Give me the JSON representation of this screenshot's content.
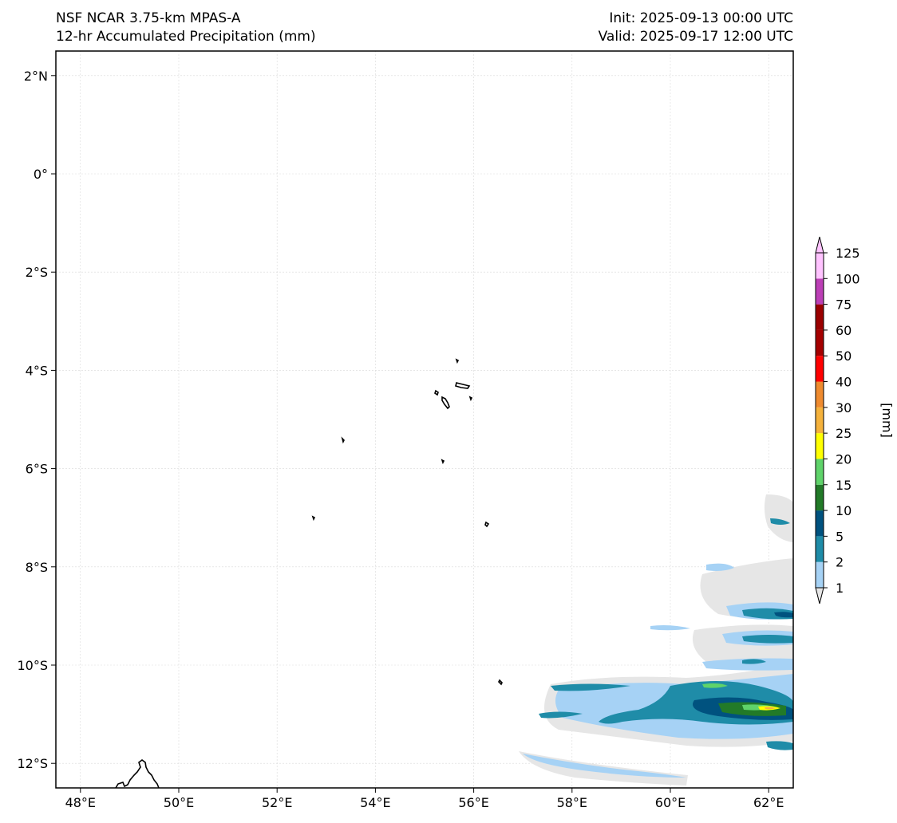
{
  "header": {
    "model": "NSF NCAR 3.75-km MPAS-A",
    "field": "12-hr Accumulated Precipitation (mm)",
    "init": "Init: 2025-09-13 00:00 UTC",
    "valid": "Valid: 2025-09-17 12:00 UTC"
  },
  "map": {
    "lon_range": [
      47.5,
      62.5
    ],
    "lat_range": [
      -12.5,
      2.5
    ],
    "lon_ticks": [
      48,
      50,
      52,
      54,
      56,
      58,
      60,
      62
    ],
    "lon_tick_labels": [
      "48°E",
      "50°E",
      "52°E",
      "54°E",
      "56°E",
      "58°E",
      "60°E",
      "62°E"
    ],
    "lat_ticks": [
      2,
      0,
      -2,
      -4,
      -6,
      -8,
      -10,
      -12
    ],
    "lat_tick_labels": [
      "2°N",
      "0°",
      "2°S",
      "4°S",
      "6°S",
      "8°S",
      "10°S",
      "12°S"
    ],
    "grid": true
  },
  "colorbar": {
    "label": "[mm]",
    "levels": [
      "1",
      "2",
      "5",
      "10",
      "15",
      "20",
      "25",
      "30",
      "40",
      "50",
      "60",
      "75",
      "100",
      "125"
    ],
    "colors": [
      "#e6e6e6",
      "#a6d2f5",
      "#1f8ca8",
      "#00527f",
      "#227a28",
      "#5fd36a",
      "#ffff00",
      "#f5b23c",
      "#ef8b2f",
      "#ff0000",
      "#a50000",
      "#9b0000",
      "#bc3fb6",
      "#ffc3ff"
    ],
    "extend": "both"
  }
}
